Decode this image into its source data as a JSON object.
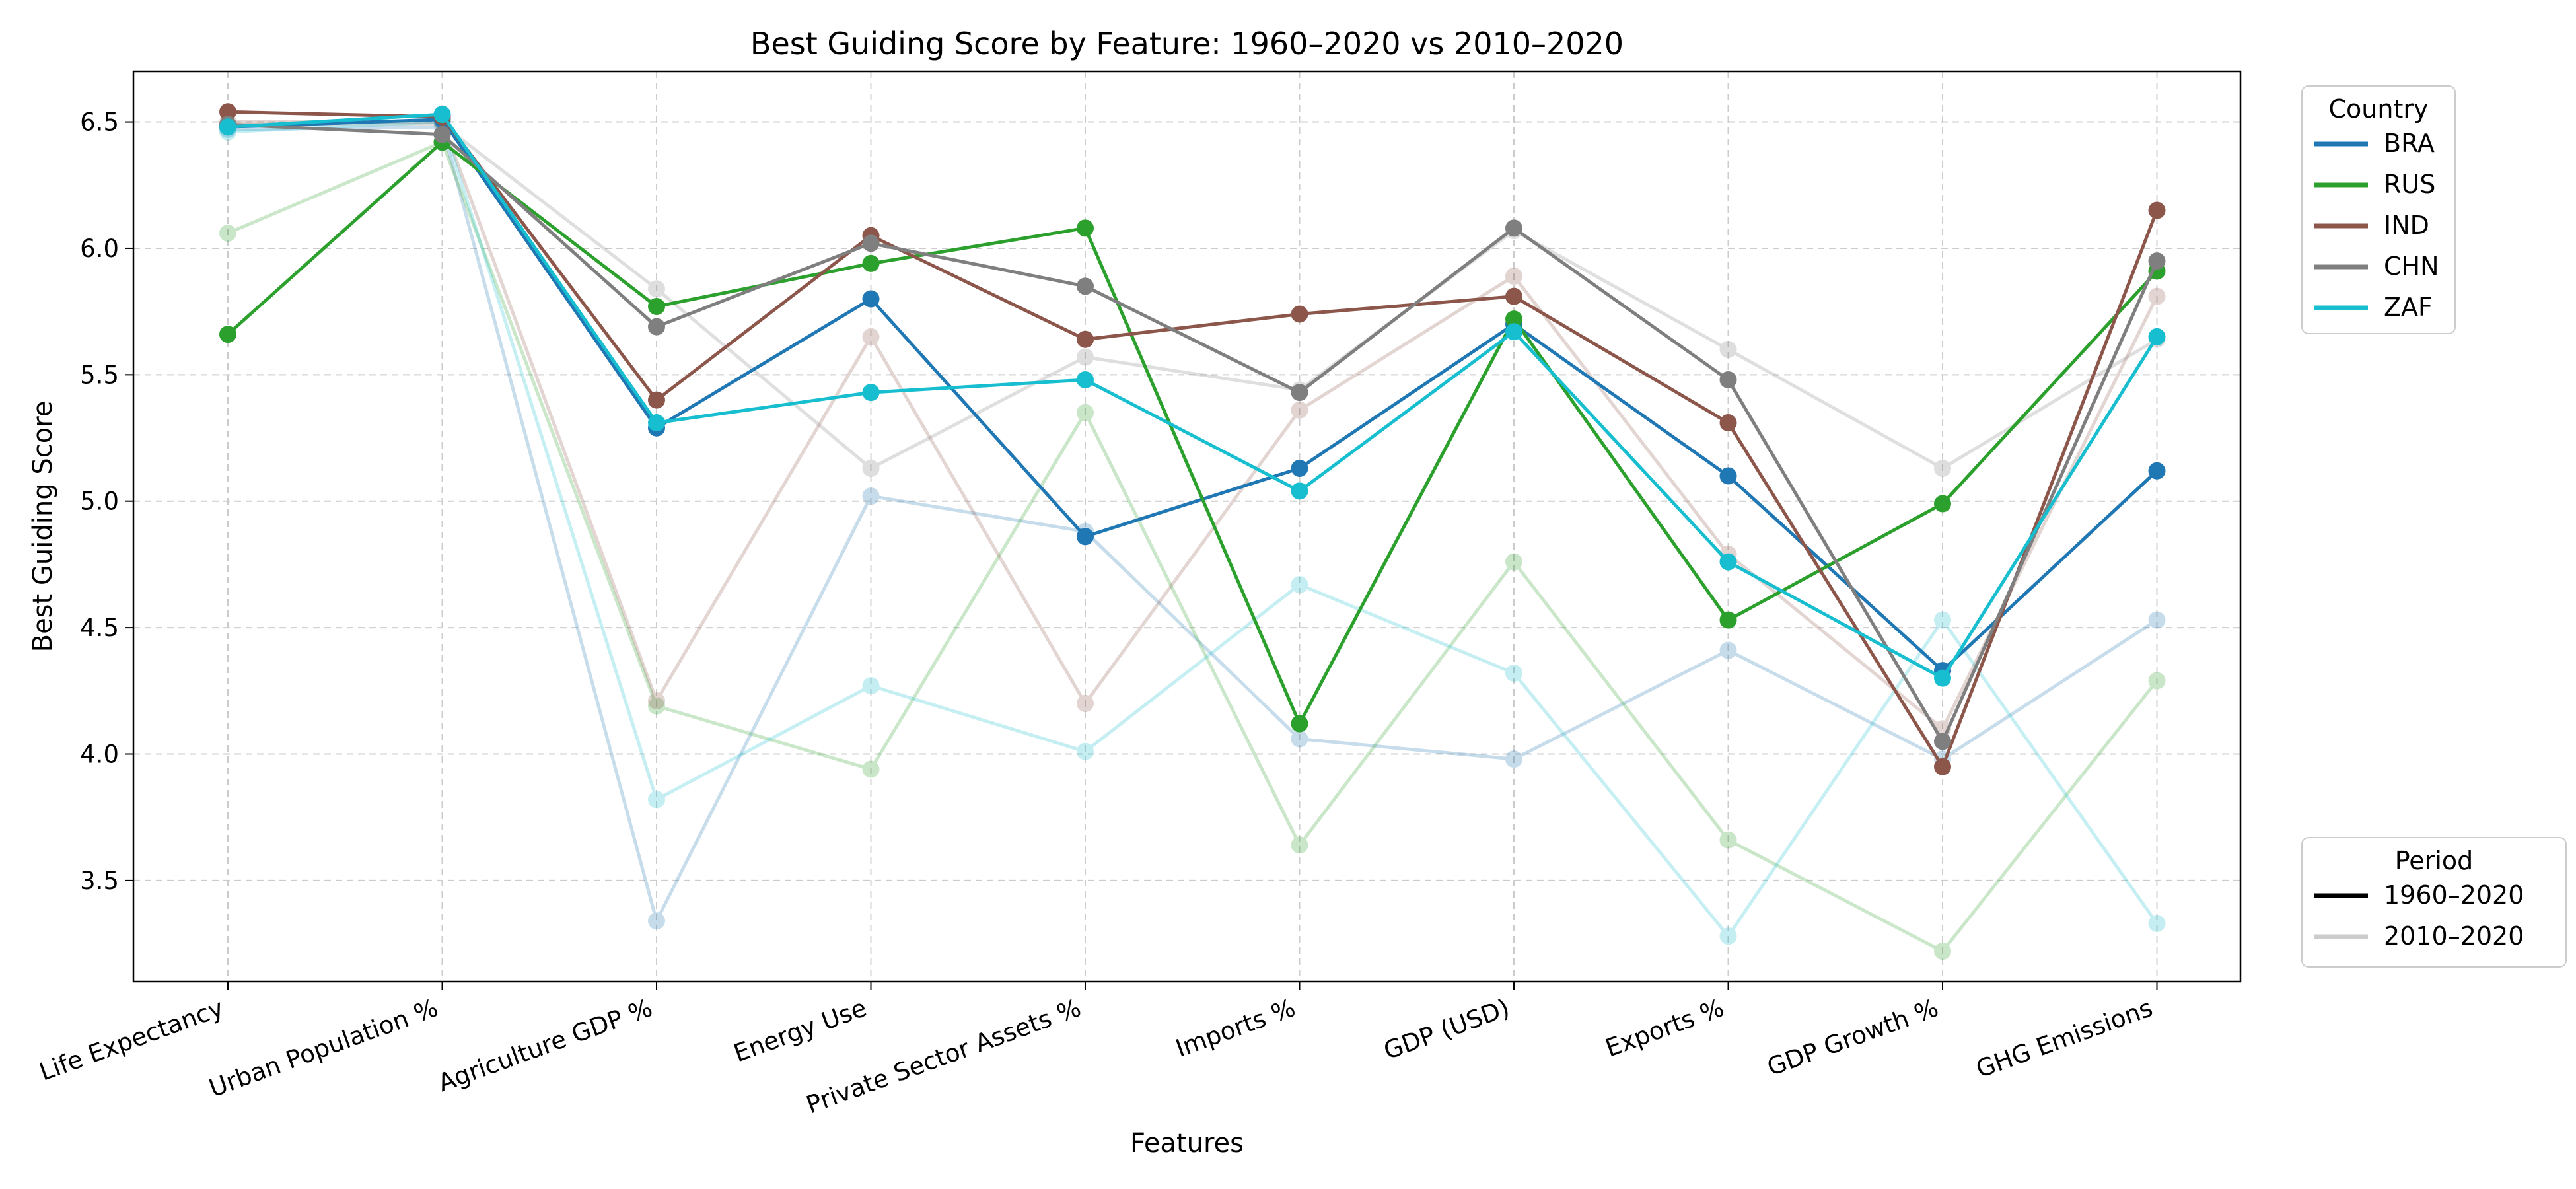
{
  "chart_data": {
    "type": "line",
    "title": "Best Guiding Score by Feature: 1960–2020 vs 2010–2020",
    "xlabel": "Features",
    "ylabel": "Best Guiding Score",
    "ylim": [
      3.1,
      6.7
    ],
    "yticks": [
      "3.5",
      "4.0",
      "4.5",
      "5.0",
      "5.5",
      "6.0",
      "6.5"
    ],
    "grid": true,
    "categories": [
      "Life Expectancy",
      "Urban Population %",
      "Agriculture GDP %",
      "Energy Use",
      "Private Sector Assets %",
      "Imports %",
      "GDP (USD)",
      "Exports %",
      "GDP Growth %",
      "GHG Emissions"
    ],
    "series": [
      {
        "name": "BRA",
        "period": "1960–2020",
        "color": "#1f77b4",
        "values": [
          6.48,
          6.51,
          5.29,
          5.8,
          4.86,
          5.13,
          5.7,
          5.1,
          4.33,
          5.12
        ]
      },
      {
        "name": "RUS",
        "period": "1960–2020",
        "color": "#2ca02c",
        "values": [
          5.66,
          6.42,
          5.77,
          5.94,
          6.08,
          4.12,
          5.72,
          4.53,
          4.99,
          5.91
        ]
      },
      {
        "name": "IND",
        "period": "1960–2020",
        "color": "#8c564b",
        "values": [
          6.54,
          6.52,
          5.4,
          6.05,
          5.64,
          5.74,
          5.81,
          5.31,
          3.95,
          6.15
        ]
      },
      {
        "name": "CHN",
        "period": "1960–2020",
        "color": "#7f7f7f",
        "values": [
          6.49,
          6.45,
          5.69,
          6.02,
          5.85,
          5.43,
          6.08,
          5.48,
          4.05,
          5.95
        ]
      },
      {
        "name": "ZAF",
        "period": "1960–2020",
        "color": "#17becf",
        "values": [
          6.48,
          6.53,
          5.31,
          5.43,
          5.48,
          5.04,
          5.67,
          4.76,
          4.3,
          5.65
        ]
      },
      {
        "name": "BRA",
        "period": "2010–2020",
        "color": "#1f77b4",
        "values": [
          6.47,
          6.48,
          3.34,
          5.02,
          4.88,
          4.06,
          3.98,
          4.41,
          3.98,
          4.53
        ]
      },
      {
        "name": "RUS",
        "period": "2010–2020",
        "color": "#2ca02c",
        "values": [
          6.06,
          6.42,
          4.19,
          3.94,
          5.35,
          3.64,
          4.76,
          3.66,
          3.22,
          4.29
        ]
      },
      {
        "name": "IND",
        "period": "2010–2020",
        "color": "#8c564b",
        "values": [
          6.5,
          6.5,
          4.21,
          5.65,
          4.2,
          5.36,
          5.89,
          4.79,
          4.1,
          5.81
        ]
      },
      {
        "name": "CHN",
        "period": "2010–2020",
        "color": "#7f7f7f",
        "values": [
          6.49,
          6.49,
          5.84,
          5.13,
          5.57,
          5.44,
          6.07,
          5.6,
          5.13,
          5.64
        ]
      },
      {
        "name": "ZAF",
        "period": "2010–2020",
        "color": "#17becf",
        "values": [
          6.46,
          6.5,
          3.82,
          4.27,
          4.01,
          4.67,
          4.32,
          3.28,
          4.53,
          3.33
        ]
      }
    ],
    "legends": [
      {
        "title": "Country",
        "placement": "upper-right outside",
        "entries": [
          {
            "label": "BRA",
            "color": "#1f77b4"
          },
          {
            "label": "RUS",
            "color": "#2ca02c"
          },
          {
            "label": "IND",
            "color": "#8c564b"
          },
          {
            "label": "CHN",
            "color": "#7f7f7f"
          },
          {
            "label": "ZAF",
            "color": "#17becf"
          }
        ]
      },
      {
        "title": "Period",
        "placement": "lower-right outside",
        "entries": [
          {
            "label": "1960–2020",
            "color": "#000000"
          },
          {
            "label": "2010–2020",
            "color": "#cccccc"
          }
        ]
      }
    ]
  }
}
